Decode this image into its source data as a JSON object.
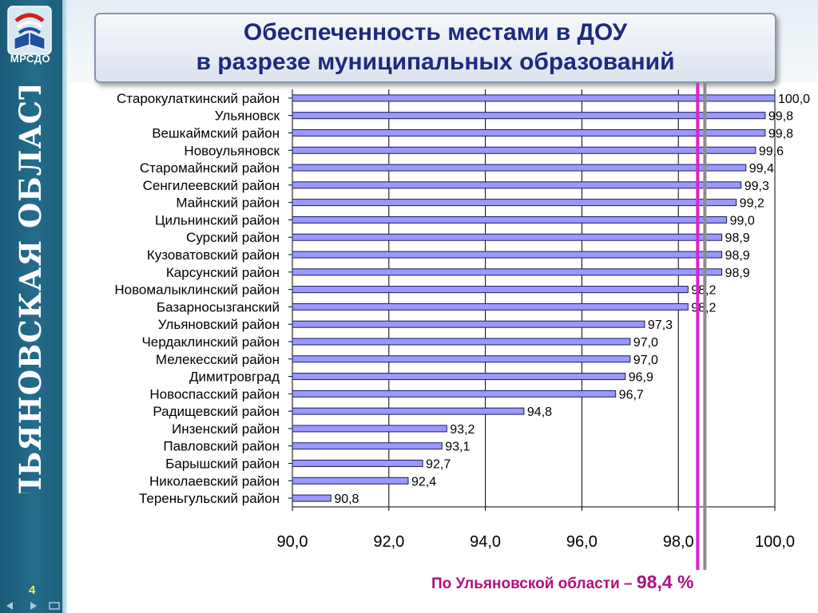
{
  "slide": {
    "logo_text": "МРСДО",
    "region_label": "УЛЬЯНОВСКАЯ ОБЛАСТЬ",
    "slide_number": "4",
    "title_line1": "Обеспеченность местами в ДОУ",
    "title_line2": "в разрезе муниципальных образований",
    "footer_text": "По Ульяновской области – ",
    "footer_value": "98,4 %"
  },
  "colors": {
    "bar_fill": "#9999ff",
    "bar_stroke": "#1a1a5a",
    "reference_line": "#e020d0",
    "title_text": "#1c2a80",
    "footer_text": "#b0107e",
    "sidebar": "#246c8c"
  },
  "icons": [
    "logo-emblem-icon",
    "back-arrow-icon",
    "forward-arrow-icon",
    "screen-icon"
  ],
  "chart_data": {
    "type": "bar",
    "orientation": "horizontal",
    "categories": [
      "Старокулаткинский район",
      "Ульяновск",
      "Вешкаймский район",
      "Новоульяновск",
      "Старомайнский район",
      "Сенгилеевский район",
      "Майнский район",
      "Цильнинский район",
      "Сурский район",
      "Кузоватовский район",
      "Карсунский район",
      "Новомалыклинский район",
      "Базарносызганский",
      "Ульяновский район",
      "Чердаклинский район",
      "Мелекесский район",
      "Димитровград",
      "Новоспасский район",
      "Радищевский район",
      "Инзенский район",
      "Павловский район",
      "Барышский район",
      "Николаевский район",
      "Тереньгульский район"
    ],
    "values": [
      100.0,
      99.8,
      99.8,
      99.6,
      99.4,
      99.3,
      99.2,
      99.0,
      98.9,
      98.9,
      98.9,
      98.2,
      98.2,
      97.3,
      97.0,
      97.0,
      96.9,
      96.7,
      94.8,
      93.2,
      93.1,
      92.7,
      92.4,
      90.8
    ],
    "value_labels": [
      "100,0",
      "99,8",
      "99,8",
      "99,6",
      "99,4",
      "99,3",
      "99,2",
      "99,0",
      "98,9",
      "98,9",
      "98,9",
      "98,2",
      "98,2",
      "97,3",
      "97,0",
      "97,0",
      "96,9",
      "96,7",
      "94,8",
      "93,2",
      "93,1",
      "92,7",
      "92,4",
      "90,8"
    ],
    "xlim": [
      90.0,
      100.0
    ],
    "xticks": [
      90,
      92,
      94,
      96,
      98,
      100
    ],
    "xtick_labels": [
      "90,0",
      "92,0",
      "94,0",
      "96,0",
      "98,0",
      "100,0"
    ],
    "reference_value": 98.4,
    "grid": "vertical",
    "title": "Обеспеченность местами в ДОУ в разрезе муниципальных образований",
    "xlabel": "",
    "ylabel": ""
  }
}
